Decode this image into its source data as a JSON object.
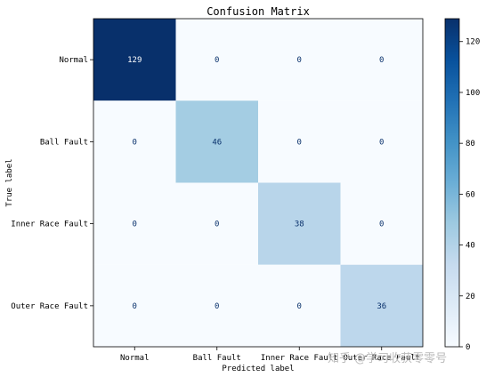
{
  "chart_data": {
    "type": "heatmap",
    "title": "Confusion Matrix",
    "xlabel": "Predicted label",
    "ylabel": "True label",
    "x_categories": [
      "Normal",
      "Ball Fault",
      "Inner Race Fault",
      "Outer Race Fault"
    ],
    "y_categories": [
      "Normal",
      "Ball Fault",
      "Inner Race Fault",
      "Outer Race Fault"
    ],
    "values": [
      [
        129,
        0,
        0,
        0
      ],
      [
        0,
        46,
        0,
        0
      ],
      [
        0,
        0,
        38,
        0
      ],
      [
        0,
        0,
        0,
        36
      ]
    ],
    "colormap": "Blues",
    "colorbar": {
      "range": [
        0,
        129
      ],
      "ticks": [
        0,
        20,
        40,
        60,
        80,
        100,
        120
      ]
    }
  },
  "watermark": "知乎 @学习收获零零号"
}
